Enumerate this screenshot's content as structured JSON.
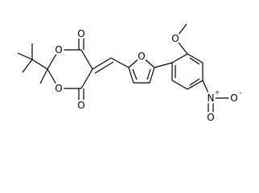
{
  "atoms": {
    "carbonyl_top": "O",
    "ring_o_top": "O",
    "ring_o_bottom": "O",
    "carbonyl_bottom": "O",
    "furan_o": "O",
    "methoxy_o": "O",
    "nitro_n": "N",
    "nitro_o_minus": "O",
    "nitro_o": "O"
  },
  "charges": {
    "nitro_n": "+",
    "nitro_o_minus": "-"
  }
}
